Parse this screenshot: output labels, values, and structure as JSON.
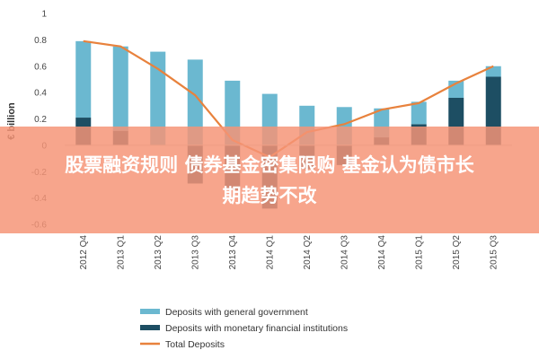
{
  "banner": {
    "line1": "股票融资规则 债券基金密集限购 基金认为债市长",
    "line2": "期趋势不改"
  },
  "colors": {
    "general_government": "#6bb8d0",
    "monetary_financial": "#1d4e63",
    "total_deposits": "#e8823d",
    "banner": "#f2845f"
  },
  "chart_data": {
    "type": "bar",
    "title": "",
    "xlabel": "",
    "ylabel": "€ billion",
    "ylim": [
      -0.6,
      1.0
    ],
    "yticks": [
      "1",
      "0.8",
      "0.6",
      "0.4",
      "0.2",
      "0",
      "-0.2",
      "-0.4",
      "-0.6"
    ],
    "categories": [
      "2012 Q4",
      "2013 Q1",
      "2013 Q2",
      "2013 Q3",
      "2013 Q4",
      "2014 Q1",
      "2014 Q2",
      "2014 Q3",
      "2014 Q4",
      "2015 Q1",
      "2015 Q2",
      "2015 Q3"
    ],
    "series": [
      {
        "name": "Deposits with general government",
        "type": "bar",
        "values": [
          0.58,
          0.64,
          0.71,
          0.65,
          0.49,
          0.39,
          0.3,
          0.29,
          0.22,
          0.17,
          0.13,
          0.08
        ]
      },
      {
        "name": "Deposits with monetary financial institutions",
        "type": "bar",
        "values": [
          0.21,
          0.11,
          0.0,
          -0.29,
          -0.34,
          -0.48,
          -0.18,
          -0.15,
          0.06,
          0.16,
          0.36,
          0.52
        ]
      },
      {
        "name": "Total Deposits",
        "type": "line",
        "values": [
          0.79,
          0.75,
          0.58,
          0.38,
          0.04,
          -0.09,
          0.1,
          0.16,
          0.27,
          0.32,
          0.47,
          0.6
        ]
      }
    ],
    "legend": {
      "placement": "bottom",
      "entries": [
        "Deposits with general government",
        "Deposits with monetary financial institutions",
        "Total Deposits"
      ]
    },
    "grid": false
  }
}
